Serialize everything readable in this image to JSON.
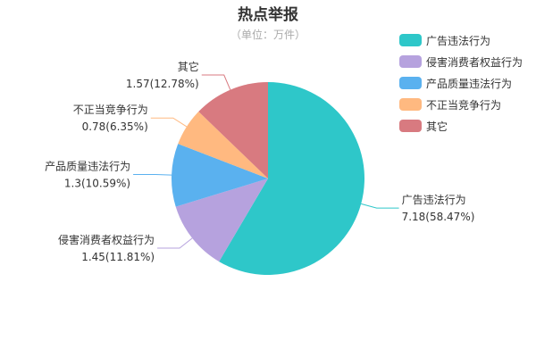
{
  "chart_data": {
    "type": "pie",
    "title": "热点举报",
    "subtitle": "（单位：万件）",
    "legend_position": "right",
    "slices": [
      {
        "name": "广告违法行为",
        "value": 7.18,
        "percent": "58.47%",
        "color": "#2ec7c9"
      },
      {
        "name": "侵害消费者权益行为",
        "value": 1.45,
        "percent": "11.81%",
        "color": "#b6a2de"
      },
      {
        "name": "产品质量违法行为",
        "value": 1.3,
        "percent": "10.59%",
        "color": "#5ab1ef"
      },
      {
        "name": "不正当竞争行为",
        "value": 0.78,
        "percent": "6.35%",
        "color": "#ffb980"
      },
      {
        "name": "其它",
        "value": 1.57,
        "percent": "12.78%",
        "color": "#d87a80"
      }
    ]
  }
}
